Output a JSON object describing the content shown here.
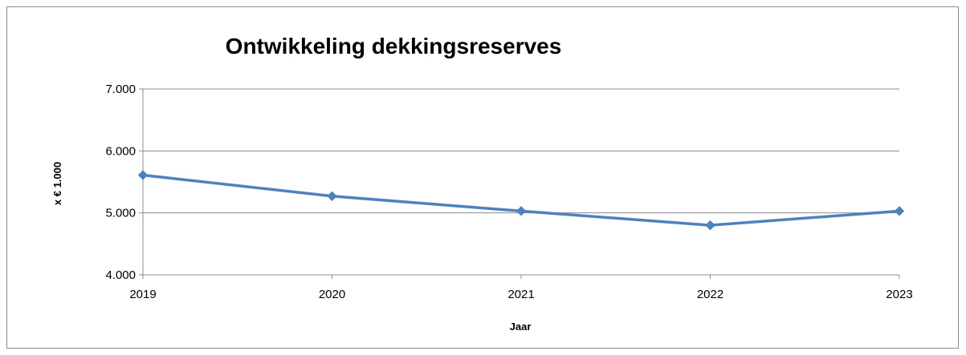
{
  "chart_data": {
    "type": "line",
    "title": "Ontwikkeling dekkingsreserves",
    "xlabel": "Jaar",
    "ylabel": "x € 1.000",
    "categories": [
      "2019",
      "2020",
      "2021",
      "2022",
      "2023"
    ],
    "series": [
      {
        "values": [
          5610,
          5270,
          5030,
          4800,
          5030
        ],
        "color": "#4f81bd"
      }
    ],
    "ylim": [
      4000,
      7000
    ],
    "yticks": [
      4000,
      5000,
      6000,
      7000
    ],
    "ytick_labels": [
      "4.000",
      "5.000",
      "6.000",
      "7.000"
    ],
    "grid": true,
    "legend": "none",
    "gridline_color": "#8c8c8c",
    "axis_color": "#8c8c8c",
    "marker": "diamond"
  }
}
